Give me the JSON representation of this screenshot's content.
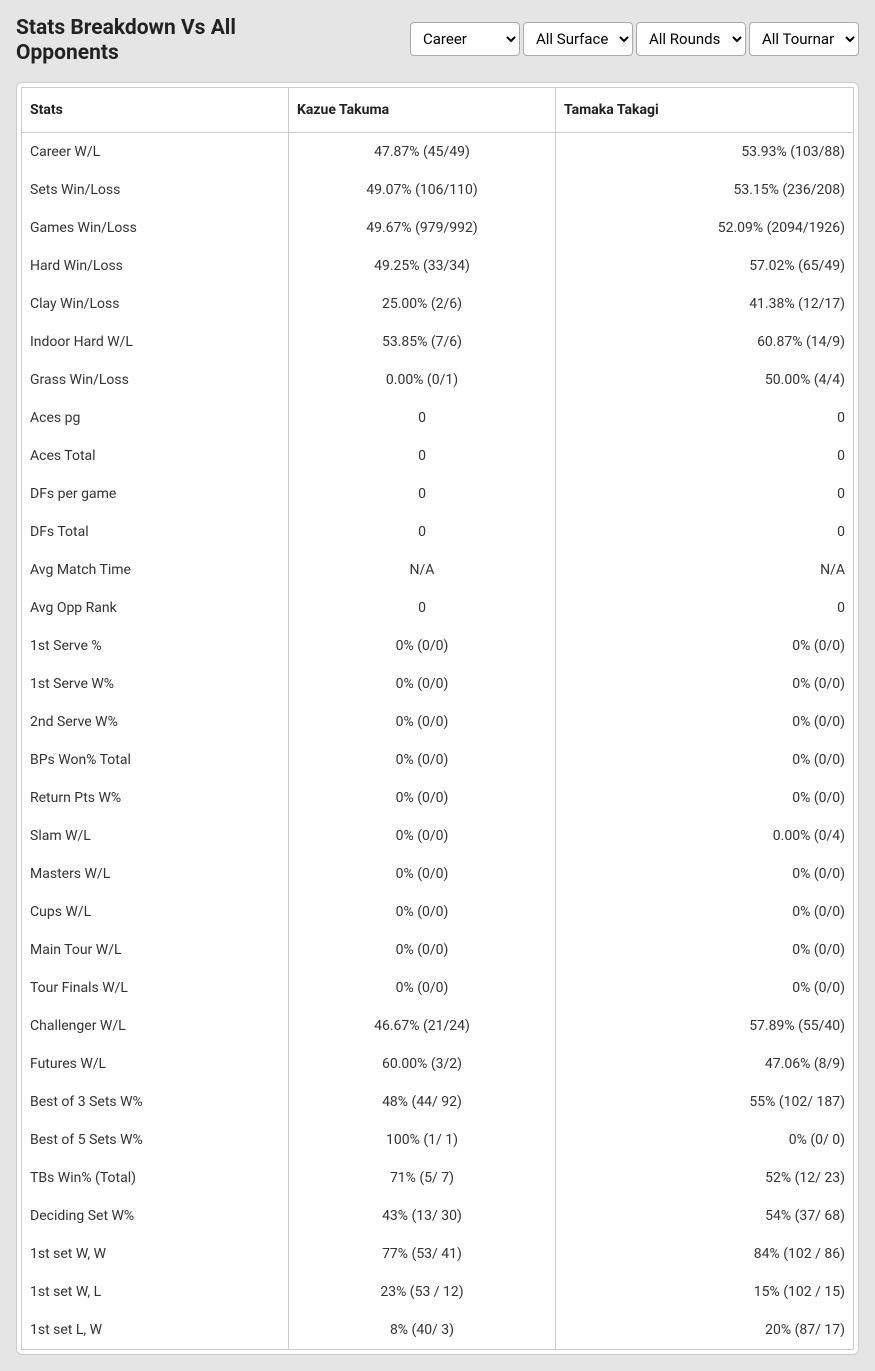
{
  "header": {
    "title": "Stats Breakdown Vs All Opponents"
  },
  "filters": {
    "career": {
      "value": "Career",
      "options": [
        "Career"
      ]
    },
    "surface": {
      "value": "All Surfaces",
      "options": [
        "All Surfaces"
      ]
    },
    "round": {
      "value": "All Rounds",
      "options": [
        "All Rounds"
      ]
    },
    "tournament": {
      "value": "All Tournaments",
      "options": [
        "All Tournaments"
      ]
    }
  },
  "table": {
    "columns": [
      "Stats",
      "Kazue Takuma",
      "Tamaka Takagi"
    ],
    "rows": [
      [
        "Career W/L",
        "47.87% (45/49)",
        "53.93% (103/88)"
      ],
      [
        "Sets Win/Loss",
        "49.07% (106/110)",
        "53.15% (236/208)"
      ],
      [
        "Games Win/Loss",
        "49.67% (979/992)",
        "52.09% (2094/1926)"
      ],
      [
        "Hard Win/Loss",
        "49.25% (33/34)",
        "57.02% (65/49)"
      ],
      [
        "Clay Win/Loss",
        "25.00% (2/6)",
        "41.38% (12/17)"
      ],
      [
        "Indoor Hard W/L",
        "53.85% (7/6)",
        "60.87% (14/9)"
      ],
      [
        "Grass Win/Loss",
        "0.00% (0/1)",
        "50.00% (4/4)"
      ],
      [
        "Aces pg",
        "0",
        "0"
      ],
      [
        "Aces Total",
        "0",
        "0"
      ],
      [
        "DFs per game",
        "0",
        "0"
      ],
      [
        "DFs Total",
        "0",
        "0"
      ],
      [
        "Avg Match Time",
        "N/A",
        "N/A"
      ],
      [
        "Avg Opp Rank",
        "0",
        "0"
      ],
      [
        "1st Serve %",
        "0% (0/0)",
        "0% (0/0)"
      ],
      [
        "1st Serve W%",
        "0% (0/0)",
        "0% (0/0)"
      ],
      [
        "2nd Serve W%",
        "0% (0/0)",
        "0% (0/0)"
      ],
      [
        "BPs Won% Total",
        "0% (0/0)",
        "0% (0/0)"
      ],
      [
        "Return Pts W%",
        "0% (0/0)",
        "0% (0/0)"
      ],
      [
        "Slam W/L",
        "0% (0/0)",
        "0.00% (0/4)"
      ],
      [
        "Masters W/L",
        "0% (0/0)",
        "0% (0/0)"
      ],
      [
        "Cups W/L",
        "0% (0/0)",
        "0% (0/0)"
      ],
      [
        "Main Tour W/L",
        "0% (0/0)",
        "0% (0/0)"
      ],
      [
        "Tour Finals W/L",
        "0% (0/0)",
        "0% (0/0)"
      ],
      [
        "Challenger W/L",
        "46.67% (21/24)",
        "57.89% (55/40)"
      ],
      [
        "Futures W/L",
        "60.00% (3/2)",
        "47.06% (8/9)"
      ],
      [
        "Best of 3 Sets W%",
        "48% (44/ 92)",
        "55% (102/ 187)"
      ],
      [
        "Best of 5 Sets W%",
        "100% (1/ 1)",
        "0% (0/ 0)"
      ],
      [
        "TBs Win% (Total)",
        "71% (5/ 7)",
        "52% (12/ 23)"
      ],
      [
        "Deciding Set W%",
        "43% (13/ 30)",
        "54% (37/ 68)"
      ],
      [
        "1st set W, W",
        "77% (53/ 41)",
        "84% (102 / 86)"
      ],
      [
        "1st set W, L",
        "23% (53 / 12)",
        "15% (102 / 15)"
      ],
      [
        "1st set L, W",
        "8% (40/ 3)",
        "20% (87/ 17)"
      ]
    ]
  }
}
